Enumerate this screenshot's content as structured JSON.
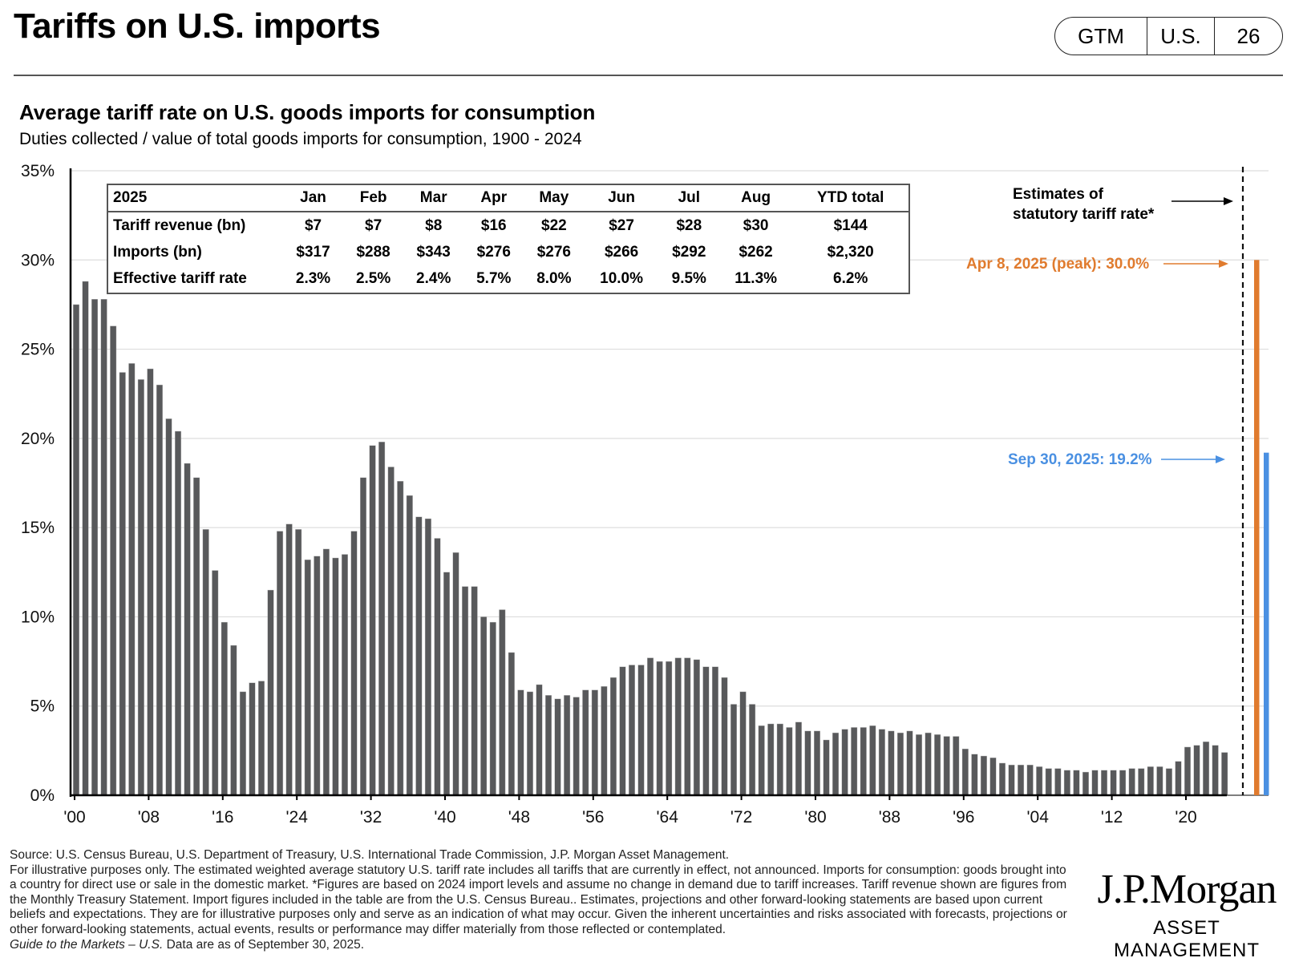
{
  "header": {
    "title": "Tariffs on U.S. imports",
    "badge": [
      "GTM",
      "U.S.",
      "26"
    ]
  },
  "chart_title": "Average tariff rate on U.S. goods imports for consumption",
  "chart_subtitle": "Duties collected / value of total goods imports for consumption, 1900 - 2024",
  "table": {
    "corner": "2025",
    "columns": [
      "Jan",
      "Feb",
      "Mar",
      "Apr",
      "May",
      "Jun",
      "Jul",
      "Aug",
      "YTD total"
    ],
    "rows": [
      {
        "label": "Tariff revenue (bn)",
        "values": [
          "$7",
          "$7",
          "$8",
          "$16",
          "$22",
          "$27",
          "$28",
          "$30",
          "$144"
        ]
      },
      {
        "label": "Imports (bn)",
        "values": [
          "$317",
          "$288",
          "$343",
          "$276",
          "$276",
          "$266",
          "$292",
          "$262",
          "$2,320"
        ]
      },
      {
        "label": "Effective tariff rate",
        "values": [
          "2.3%",
          "2.5%",
          "2.4%",
          "5.7%",
          "8.0%",
          "10.0%",
          "9.5%",
          "11.3%",
          "6.2%"
        ]
      }
    ]
  },
  "annotations": {
    "estimates": [
      "Estimates of",
      "statutory tariff rate*"
    ],
    "peak": "Apr 8, 2025 (peak): 30.0%",
    "current": "Sep 30, 2025: 19.2%"
  },
  "colors": {
    "bar": "#58595b",
    "peak": "#e07b2e",
    "current": "#4a90e2",
    "grid": "#dddddd"
  },
  "chart_data": {
    "type": "bar",
    "title": "Average tariff rate on U.S. goods imports for consumption",
    "subtitle": "Duties collected / value of total goods imports for consumption, 1900 - 2024",
    "xlabel": "",
    "ylabel": "",
    "ylim": [
      0,
      35
    ],
    "y_ticks": [
      "0%",
      "5%",
      "10%",
      "15%",
      "20%",
      "25%",
      "30%",
      "35%"
    ],
    "y_tick_values": [
      0,
      5,
      10,
      15,
      20,
      25,
      30,
      35
    ],
    "x_tick_labels": [
      "'00",
      "'08",
      "'16",
      "'24",
      "'32",
      "'40",
      "'48",
      "'56",
      "'64",
      "'72",
      "'80",
      "'88",
      "'96",
      "'04",
      "'12",
      "'20"
    ],
    "x_tick_years": [
      1900,
      1908,
      1916,
      1924,
      1932,
      1940,
      1948,
      1956,
      1964,
      1972,
      1980,
      1988,
      1996,
      2004,
      2012,
      2020
    ],
    "grid": true,
    "x_start": 1900,
    "series": [
      {
        "name": "Average tariff rate (%)",
        "values": [
          27.5,
          28.8,
          27.8,
          27.8,
          26.3,
          23.7,
          24.2,
          23.3,
          23.9,
          23.0,
          21.1,
          20.4,
          18.6,
          17.8,
          14.9,
          12.6,
          9.7,
          8.4,
          5.8,
          6.3,
          6.4,
          11.5,
          14.8,
          15.2,
          14.9,
          13.2,
          13.4,
          13.8,
          13.3,
          13.5,
          14.8,
          17.8,
          19.6,
          19.8,
          18.4,
          17.6,
          16.8,
          15.6,
          15.5,
          14.4,
          12.5,
          13.6,
          11.7,
          11.7,
          10.0,
          9.7,
          10.4,
          8.0,
          5.9,
          5.8,
          6.2,
          5.6,
          5.4,
          5.6,
          5.5,
          5.9,
          5.9,
          6.1,
          6.6,
          7.2,
          7.3,
          7.3,
          7.7,
          7.5,
          7.5,
          7.7,
          7.7,
          7.6,
          7.2,
          7.2,
          6.6,
          5.1,
          5.8,
          5.1,
          3.9,
          4.0,
          4.0,
          3.8,
          4.1,
          3.6,
          3.6,
          3.1,
          3.5,
          3.7,
          3.8,
          3.8,
          3.9,
          3.7,
          3.6,
          3.5,
          3.6,
          3.4,
          3.5,
          3.4,
          3.3,
          3.3,
          2.6,
          2.3,
          2.2,
          2.1,
          1.8,
          1.7,
          1.7,
          1.7,
          1.6,
          1.5,
          1.5,
          1.4,
          1.4,
          1.3,
          1.4,
          1.4,
          1.4,
          1.4,
          1.5,
          1.5,
          1.6,
          1.6,
          1.5,
          1.9,
          2.7,
          2.8,
          3.0,
          2.8,
          2.4
        ]
      }
    ],
    "estimates": [
      {
        "name": "Apr 8, 2025 (peak)",
        "value": 30.0
      },
      {
        "name": "Sep 30, 2025",
        "value": 19.2
      }
    ]
  },
  "footnotes": {
    "source": "Source: U.S. Census Bureau, U.S. Department of Treasury, U.S. International Trade Commission, J.P. Morgan Asset Management.",
    "body": "For illustrative purposes only. The estimated weighted average statutory U.S. tariff rate includes all tariffs that are currently in effect, not announced. Imports for consumption: goods brought into a country for direct use or sale in the domestic market. *Figures are based on 2024 import levels and assume no change in demand due to tariff increases. Tariff revenue shown are figures from the Monthly Treasury Statement. Import figures included in the table are from the U.S. Census Bureau.. Estimates, projections and other forward-looking statements are based upon current beliefs and expectations. They are for illustrative purposes only and serve as an indication of what may occur. Given the inherent uncertainties and risks associated with forecasts, projections or other forward-looking statements, actual events, results or performance may differ materially from those reflected or contemplated.",
    "guide_title": "Guide to the Markets – U.S.",
    "guide_date": " Data are as of September 30, 2025."
  },
  "logo": {
    "line1": "J.P.Morgan",
    "line2": "ASSET MANAGEMENT"
  }
}
